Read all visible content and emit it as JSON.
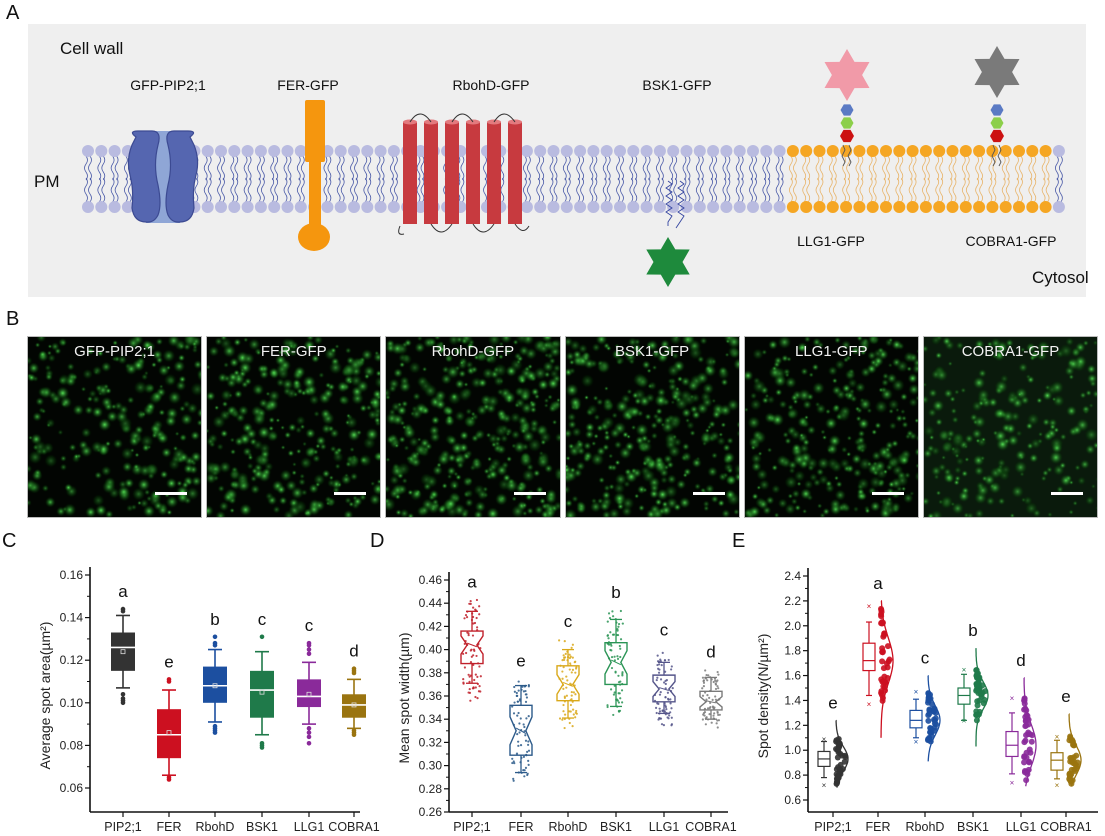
{
  "panels": {
    "A": "A",
    "B": "B",
    "C": "C",
    "D": "D",
    "E": "E"
  },
  "diagram": {
    "cell_wall_label": "Cell  wall",
    "pm_label": "PM",
    "cytosol_label": "Cytosol",
    "proteins": [
      {
        "label": "GFP-PIP2;1",
        "shape": "channel",
        "color": "#5566b0"
      },
      {
        "label": "FER-GFP",
        "shape": "receptor-kinase",
        "color": "#f5960e"
      },
      {
        "label": "RbohD-GFP",
        "shape": "six-transmembrane",
        "color": "#c73a3f"
      },
      {
        "label": "BSK1-GFP",
        "shape": "lipid-anchored-star",
        "color": "#1e8a3c"
      },
      {
        "label": "LLG1-GFP",
        "shape": "gpi-anchored-star",
        "color": "#f19aa8"
      },
      {
        "label": "COBRA1-GFP",
        "shape": "gpi-anchored-star",
        "color": "#7a7a7a"
      }
    ],
    "membrane_color": "#b9bbe0",
    "raft_color": "#f5a623"
  },
  "micrographs": [
    {
      "label": "GFP-PIP2;1"
    },
    {
      "label": "FER-GFP"
    },
    {
      "label": "RbohD-GFP"
    },
    {
      "label": "BSK1-GFP"
    },
    {
      "label": "LLG1-GFP"
    },
    {
      "label": "COBRA1-GFP"
    }
  ],
  "chart_data": [
    {
      "id": "C",
      "type": "box",
      "title": "",
      "xlabel": "",
      "ylabel": "Average spot area(µm²)",
      "ylim": [
        0.05,
        0.16
      ],
      "yticks": [
        "0.06",
        "0.08",
        "0.10",
        "0.12",
        "0.14",
        "0.16"
      ],
      "categories": [
        "PIP2;1",
        "FER",
        "RbohD",
        "BSK1",
        "LLG1",
        "COBRA1"
      ],
      "colors": [
        "#333333",
        "#cc1020",
        "#1c4fa0",
        "#1f7a4a",
        "#8a2a9a",
        "#9a7410"
      ],
      "letters": [
        "a",
        "e",
        "b",
        "c",
        "c",
        "d"
      ],
      "series": [
        {
          "name": "PIP2;1",
          "whisker_low": 0.107,
          "q1": 0.115,
          "median": 0.126,
          "q3": 0.133,
          "whisker_high": 0.141,
          "mean": 0.124,
          "outliers": [
            0.144,
            0.143,
            0.104,
            0.102,
            0.101,
            0.1
          ]
        },
        {
          "name": "FER",
          "whisker_low": 0.066,
          "q1": 0.074,
          "median": 0.085,
          "q3": 0.097,
          "whisker_high": 0.106,
          "mean": 0.086,
          "outliers": [
            0.111,
            0.11,
            0.065,
            0.064
          ]
        },
        {
          "name": "RbohD",
          "whisker_low": 0.091,
          "q1": 0.1,
          "median": 0.108,
          "q3": 0.117,
          "whisker_high": 0.125,
          "mean": 0.108,
          "outliers": [
            0.131,
            0.128,
            0.127,
            0.089,
            0.088,
            0.087,
            0.086
          ]
        },
        {
          "name": "BSK1",
          "whisker_low": 0.085,
          "q1": 0.093,
          "median": 0.106,
          "q3": 0.115,
          "whisker_high": 0.124,
          "mean": 0.105,
          "outliers": [
            0.131,
            0.081,
            0.08,
            0.079
          ]
        },
        {
          "name": "LLG1",
          "whisker_low": 0.09,
          "q1": 0.098,
          "median": 0.103,
          "q3": 0.111,
          "whisker_high": 0.119,
          "mean": 0.104,
          "outliers": [
            0.128,
            0.127,
            0.125,
            0.123,
            0.088,
            0.086,
            0.084,
            0.081
          ]
        },
        {
          "name": "COBRA1",
          "whisker_low": 0.088,
          "q1": 0.093,
          "median": 0.099,
          "q3": 0.104,
          "whisker_high": 0.111,
          "mean": 0.099,
          "outliers": [
            0.116,
            0.115,
            0.114,
            0.087,
            0.086,
            0.085
          ]
        }
      ]
    },
    {
      "id": "D",
      "type": "box",
      "notched": true,
      "title": "",
      "xlabel": "",
      "ylabel": "Mean spot width(µm)",
      "ylim": [
        0.26,
        0.465
      ],
      "yticks": [
        "0.26",
        "0.28",
        "0.30",
        "0.32",
        "0.34",
        "0.36",
        "0.38",
        "0.40",
        "0.42",
        "0.44",
        "0.46"
      ],
      "categories": [
        "PIP2;1",
        "FER",
        "RbohD",
        "BSK1",
        "LLG1",
        "COBRA1"
      ],
      "colors": [
        "#c0202a",
        "#2c5a8a",
        "#d9a81a",
        "#2a9455",
        "#55558a",
        "#7a7a7a"
      ],
      "letters": [
        "a",
        "e",
        "c",
        "b",
        "c",
        "d"
      ],
      "series": [
        {
          "name": "PIP2;1",
          "whisker_low": 0.371,
          "q1": 0.388,
          "median": 0.404,
          "q3": 0.416,
          "whisker_high": 0.433,
          "min": 0.353,
          "max": 0.443
        },
        {
          "name": "FER",
          "whisker_low": 0.294,
          "q1": 0.309,
          "median": 0.33,
          "q3": 0.352,
          "whisker_high": 0.369,
          "min": 0.285,
          "max": 0.375
        },
        {
          "name": "RbohD",
          "whisker_low": 0.341,
          "q1": 0.356,
          "median": 0.37,
          "q3": 0.386,
          "whisker_high": 0.4,
          "min": 0.331,
          "max": 0.409
        },
        {
          "name": "BSK1",
          "whisker_low": 0.351,
          "q1": 0.37,
          "median": 0.389,
          "q3": 0.406,
          "whisker_high": 0.426,
          "min": 0.338,
          "max": 0.434
        },
        {
          "name": "LLG1",
          "whisker_low": 0.345,
          "q1": 0.355,
          "median": 0.366,
          "q3": 0.378,
          "whisker_high": 0.389,
          "min": 0.333,
          "max": 0.402
        },
        {
          "name": "COBRA1",
          "whisker_low": 0.34,
          "q1": 0.348,
          "median": 0.355,
          "q3": 0.364,
          "whisker_high": 0.376,
          "min": 0.33,
          "max": 0.383
        }
      ]
    },
    {
      "id": "E",
      "type": "box-violin",
      "title": "",
      "xlabel": "",
      "ylabel": "Spot density(N/µm²)",
      "ylim": [
        0.5,
        2.4
      ],
      "yticks": [
        "0.6",
        "0.8",
        "1.0",
        "1.2",
        "1.4",
        "1.6",
        "1.8",
        "2.0",
        "2.2",
        "2.4"
      ],
      "categories": [
        "PIP2;1",
        "FER",
        "RbohD",
        "BSK1",
        "LLG1",
        "COBRA1"
      ],
      "colors": [
        "#333333",
        "#cc1020",
        "#1c4fa0",
        "#1f7a4a",
        "#8a2a9a",
        "#9a7410"
      ],
      "letters": [
        "e",
        "a",
        "c",
        "b",
        "d",
        "e"
      ],
      "series": [
        {
          "name": "PIP2;1",
          "whisker_low": 0.78,
          "q1": 0.87,
          "median": 0.93,
          "q3": 0.99,
          "whisker_high": 1.07,
          "mean": 0.94,
          "min": 0.72,
          "max": 1.09,
          "kde_low": 0.7,
          "kde_high": 1.24
        },
        {
          "name": "FER",
          "whisker_low": 1.44,
          "q1": 1.64,
          "median": 1.72,
          "q3": 1.86,
          "whisker_high": 2.03,
          "mean": 1.75,
          "min": 1.37,
          "max": 2.16,
          "kde_low": 1.1,
          "kde_high": 2.2
        },
        {
          "name": "RbohD",
          "whisker_low": 1.1,
          "q1": 1.18,
          "median": 1.24,
          "q3": 1.32,
          "whisker_high": 1.41,
          "mean": 1.26,
          "min": 1.07,
          "max": 1.47,
          "kde_low": 0.91,
          "kde_high": 1.6
        },
        {
          "name": "BSK1",
          "whisker_low": 1.24,
          "q1": 1.37,
          "median": 1.44,
          "q3": 1.5,
          "whisker_high": 1.61,
          "mean": 1.42,
          "min": 1.24,
          "max": 1.65,
          "kde_low": 1.03,
          "kde_high": 1.82
        },
        {
          "name": "LLG1",
          "whisker_low": 0.81,
          "q1": 0.95,
          "median": 1.04,
          "q3": 1.15,
          "whisker_high": 1.3,
          "mean": 1.06,
          "min": 0.74,
          "max": 1.42,
          "kde_low": 0.71,
          "kde_high": 1.58
        },
        {
          "name": "COBRA1",
          "whisker_low": 0.77,
          "q1": 0.84,
          "median": 0.92,
          "q3": 0.98,
          "whisker_high": 1.08,
          "mean": 0.92,
          "min": 0.72,
          "max": 1.11,
          "kde_low": 0.71,
          "kde_high": 1.29
        }
      ]
    }
  ]
}
